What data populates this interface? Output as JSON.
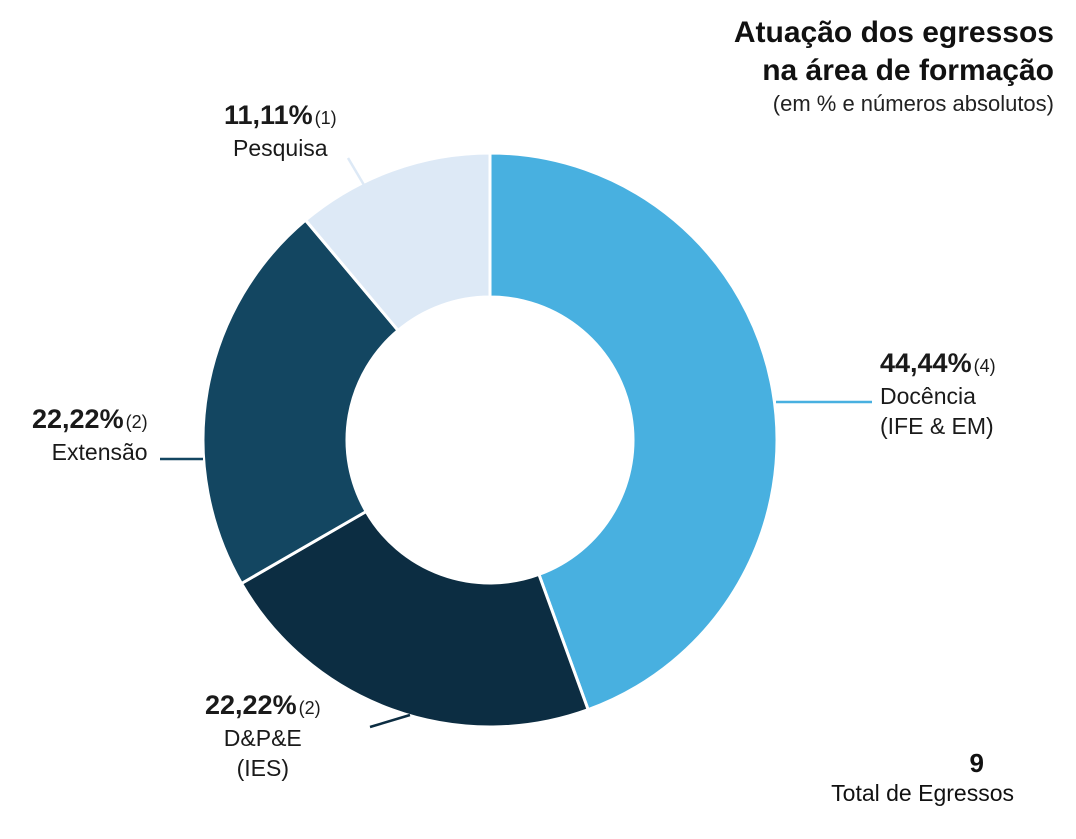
{
  "chart_data": {
    "type": "pie",
    "subtype": "donut",
    "title": "Atuação dos egressos na área de formação",
    "title_lines": [
      "Atuação dos egressos",
      "na área de formação"
    ],
    "subtitle": "(em % e números absolutos)",
    "slices": [
      {
        "key": "docencia",
        "label_lines": [
          "Docência",
          "(IFE & EM)"
        ],
        "percent_text": "44,44%",
        "count_text": "(4)",
        "value": 4,
        "color": "#48b0e0"
      },
      {
        "key": "dpe",
        "label_lines": [
          "D&P&E",
          "(IES)"
        ],
        "percent_text": "22,22%",
        "count_text": "(2)",
        "value": 2,
        "color": "#0c2d42"
      },
      {
        "key": "extensao",
        "label_lines": [
          "Extensão"
        ],
        "percent_text": "22,22%",
        "count_text": "(2)",
        "value": 2,
        "color": "#134661"
      },
      {
        "key": "pesquisa",
        "label_lines": [
          "Pesquisa"
        ],
        "percent_text": "11,11%",
        "count_text": "(1)",
        "value": 1,
        "color": "#dde9f6"
      }
    ],
    "total": {
      "value": "9",
      "label": "Total de Egressos"
    }
  }
}
